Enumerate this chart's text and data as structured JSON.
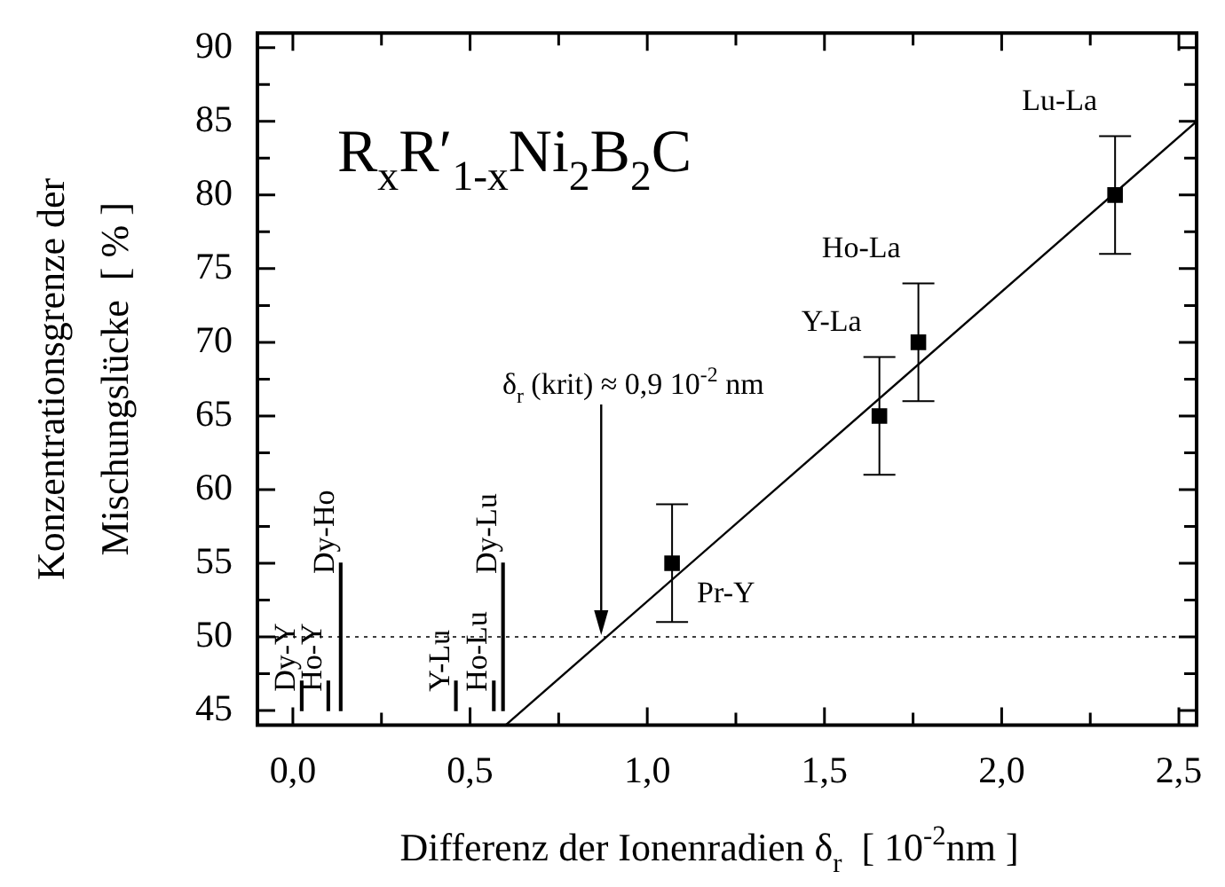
{
  "chart_data": {
    "type": "scatter",
    "title": "R$_{x}$R′$_{1-x}$Ni$_{2}$B$_{2}$C",
    "xlabel": "Differenz der Ionenradien δ$_{r}$  [ 10$^{-2}$nm ]",
    "ylabel": "Konzentrationsgrenze der\nMischungslücke  [ % ]",
    "xlim": [
      -0.1,
      2.55
    ],
    "ylim": [
      44,
      91
    ],
    "xticks": [
      {
        "value": 0,
        "label": "0,0"
      },
      {
        "value": 0.25,
        "label": null
      },
      {
        "value": 0.5,
        "label": "0,5"
      },
      {
        "value": 0.75,
        "label": null
      },
      {
        "value": 1,
        "label": "1,0"
      },
      {
        "value": 1.25,
        "label": null
      },
      {
        "value": 1.5,
        "label": "1,5"
      },
      {
        "value": 1.75,
        "label": null
      },
      {
        "value": 2,
        "label": "2,0"
      },
      {
        "value": 2.25,
        "label": null
      },
      {
        "value": 2.5,
        "label": "2,5"
      }
    ],
    "yticks": [
      45,
      {
        "value": 47.5,
        "label": null
      },
      50,
      {
        "value": 52.5,
        "label": null
      },
      55,
      {
        "value": 57.5,
        "label": null
      },
      60,
      {
        "value": 62.5,
        "label": null
      },
      65,
      {
        "value": 67.5,
        "label": null
      },
      70,
      {
        "value": 72.5,
        "label": null
      },
      75,
      {
        "value": 77.5,
        "label": null
      },
      80,
      {
        "value": 82.5,
        "label": null
      },
      85,
      {
        "value": 87.5,
        "label": null
      },
      90
    ],
    "marker": "square",
    "series": [
      {
        "color": "#000000",
        "x": [
          1.07,
          1.655,
          1.765,
          2.32
        ],
        "values": [
          55,
          65,
          70,
          80
        ],
        "errors": [
          4,
          4,
          4,
          4
        ]
      },
      {
        "type": "line",
        "color": "#000000",
        "x": [
          0.6,
          2.55
        ],
        "values": [
          44,
          85
        ],
        "marker": "none"
      },
      {
        "type": "bar",
        "color": "#000000",
        "x": [
          0.025,
          0.1,
          0.135,
          0.46,
          0.567,
          0.593
        ],
        "base": [
          45,
          45,
          45,
          45,
          45,
          45
        ],
        "values": [
          2,
          2,
          10,
          2,
          2,
          10
        ]
      }
    ],
    "ref_lines": [
      {
        "axis": "y",
        "value": 50,
        "line_style": "dotted"
      }
    ],
    "annotations": [
      {
        "text": "Pr-Y",
        "x": 1.07,
        "y": 55
      },
      {
        "text": "Y-La",
        "x": 1.655,
        "y": 65
      },
      {
        "text": "Ho-La",
        "x": 1.765,
        "y": 70
      },
      {
        "text": "Lu-La",
        "x": 2.32,
        "y": 80
      },
      {
        "text": "δ$_{r}$ (krit) ≈ 0,9 10$^{-2}$ nm",
        "x": 0.87,
        "y": 50
      },
      {
        "text": "Dy-Y",
        "x": 0.025,
        "y": 47
      },
      {
        "text": "Ho-Y",
        "x": 0.1,
        "y": 47
      },
      {
        "text": "Dy-Ho",
        "x": 0.135,
        "y": 55
      },
      {
        "text": "Y-Lu",
        "x": 0.46,
        "y": 47
      },
      {
        "text": "Ho-Lu",
        "x": 0.567,
        "y": 47
      },
      {
        "text": "Dy-Lu",
        "x": 0.593,
        "y": 55
      }
    ]
  }
}
